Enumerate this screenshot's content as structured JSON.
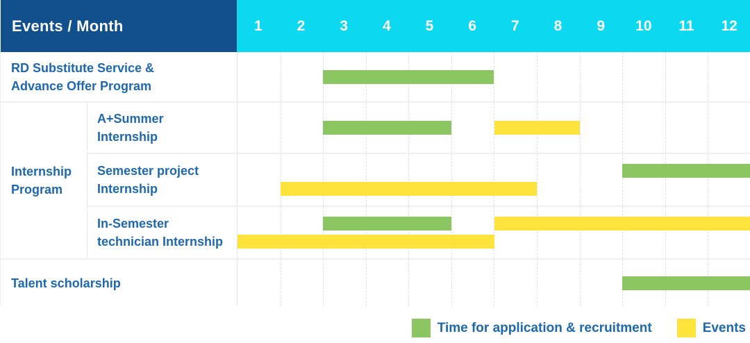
{
  "colors": {
    "navy": "#11508c",
    "cyan": "#0cd8f0",
    "label_text": "#1e68ad",
    "application": "#8cc663",
    "events": "#ffe33d"
  },
  "header": {
    "title": "Events / Month",
    "months": [
      "1",
      "2",
      "3",
      "4",
      "5",
      "6",
      "7",
      "8",
      "9",
      "10",
      "11",
      "12"
    ]
  },
  "group": {
    "label_lines": [
      "Internship",
      "Program"
    ]
  },
  "rows": [
    {
      "name": "RD Substitute Service & Advance Offer Program",
      "label_lines": [
        "RD Substitute Service &",
        "Advance Offer Program"
      ],
      "lines": [
        [
          {
            "type": "application",
            "start": 3,
            "end": 6
          }
        ]
      ]
    },
    {
      "name": "A+Summer Internship",
      "label_lines": [
        "A+Summer",
        "Internship"
      ],
      "lines": [
        [
          {
            "type": "application",
            "start": 3,
            "end": 5
          },
          {
            "type": "events",
            "start": 7,
            "end": 8
          }
        ]
      ]
    },
    {
      "name": "Semester project Internship",
      "label_lines": [
        "Semester project",
        "Internship"
      ],
      "lines": [
        [
          {
            "type": "application",
            "start": 10,
            "end": 12
          }
        ],
        [
          {
            "type": "events",
            "start": 2,
            "end": 7
          }
        ]
      ]
    },
    {
      "name": "In-Semester technician Internship",
      "label_lines": [
        "In-Semester",
        "technician Internship"
      ],
      "lines": [
        [
          {
            "type": "application",
            "start": 3,
            "end": 5
          },
          {
            "type": "events",
            "start": 7,
            "end": 12
          }
        ],
        [
          {
            "type": "events",
            "start": 1,
            "end": 6
          }
        ]
      ]
    },
    {
      "name": "Talent scholarship",
      "label_lines": [
        "Talent scholarship"
      ],
      "lines": [
        [
          {
            "type": "application",
            "start": 10,
            "end": 12
          }
        ]
      ]
    }
  ],
  "legend": {
    "items": [
      {
        "type": "application",
        "label": "Time for application & recruitment"
      },
      {
        "type": "events",
        "label": "Events"
      }
    ]
  },
  "chart_data": {
    "type": "bar",
    "subtype": "gantt",
    "title": "Events / Month",
    "xlabel": "Month",
    "x_ticks": [
      1,
      2,
      3,
      4,
      5,
      6,
      7,
      8,
      9,
      10,
      11,
      12
    ],
    "xlim": [
      1,
      12
    ],
    "grid": true,
    "legend_position": "bottom-right",
    "legend": [
      "Time for application & recruitment",
      "Events"
    ],
    "series": [
      {
        "row": "RD Substitute Service & Advance Offer Program",
        "group": null,
        "bars": [
          {
            "kind": "Time for application & recruitment",
            "start_month": 3,
            "end_month": 6
          }
        ]
      },
      {
        "row": "A+Summer Internship",
        "group": "Internship Program",
        "bars": [
          {
            "kind": "Time for application & recruitment",
            "start_month": 3,
            "end_month": 5
          },
          {
            "kind": "Events",
            "start_month": 7,
            "end_month": 8
          }
        ]
      },
      {
        "row": "Semester project Internship",
        "group": "Internship Program",
        "bars": [
          {
            "kind": "Time for application & recruitment",
            "start_month": 10,
            "end_month": 12
          },
          {
            "kind": "Events",
            "start_month": 2,
            "end_month": 7
          }
        ]
      },
      {
        "row": "In-Semester technician Internship",
        "group": "Internship Program",
        "bars": [
          {
            "kind": "Time for application & recruitment",
            "start_month": 3,
            "end_month": 5
          },
          {
            "kind": "Events",
            "start_month": 7,
            "end_month": 12
          },
          {
            "kind": "Events",
            "start_month": 1,
            "end_month": 6
          }
        ]
      },
      {
        "row": "Talent scholarship",
        "group": null,
        "bars": [
          {
            "kind": "Time for application & recruitment",
            "start_month": 10,
            "end_month": 12
          }
        ]
      }
    ]
  }
}
